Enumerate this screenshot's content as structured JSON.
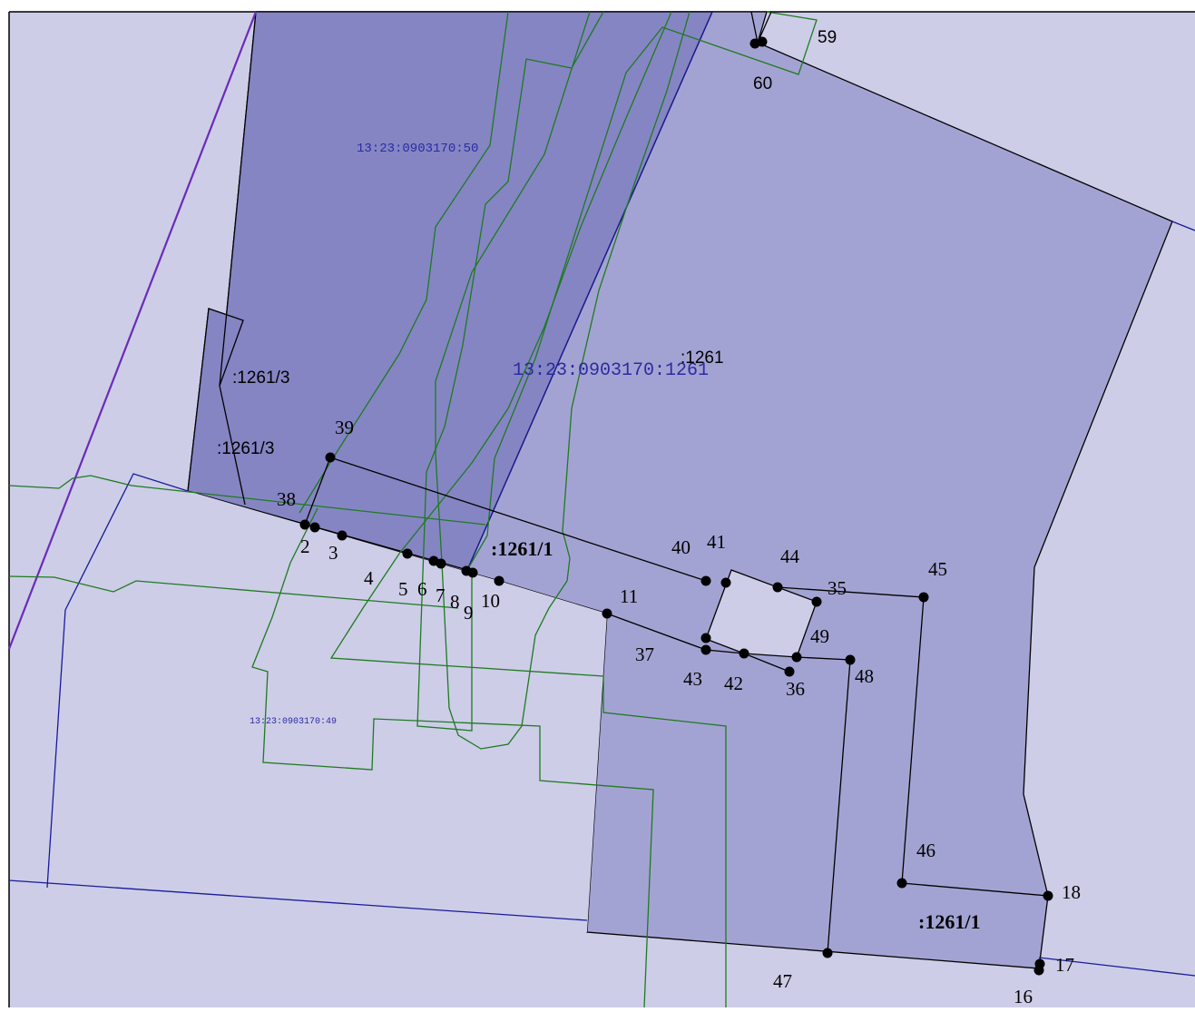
{
  "parcel_labels": {
    "main": "13:23:0903170:1261",
    "north_west": "13:23:0903170:50",
    "south_west": "13:23:0903170:49"
  },
  "subparcel_labels": {
    "part1_upper": ":1261/1",
    "part1_lower": ":1261/1",
    "part3_upper": ":1261/3",
    "part3_lower": ":1261/3",
    "short_main": ":1261"
  },
  "points": [
    {
      "id": "p2",
      "label": "2"
    },
    {
      "id": "p3",
      "label": "3"
    },
    {
      "id": "p4",
      "label": "4"
    },
    {
      "id": "p5",
      "label": "5"
    },
    {
      "id": "p6",
      "label": "6"
    },
    {
      "id": "p7",
      "label": "7"
    },
    {
      "id": "p8",
      "label": "8"
    },
    {
      "id": "p9",
      "label": "9"
    },
    {
      "id": "p10",
      "label": "10"
    },
    {
      "id": "p11",
      "label": "11"
    },
    {
      "id": "p16",
      "label": "16"
    },
    {
      "id": "p17",
      "label": "17"
    },
    {
      "id": "p18",
      "label": "18"
    },
    {
      "id": "p35",
      "label": "35"
    },
    {
      "id": "p36",
      "label": "36"
    },
    {
      "id": "p37",
      "label": "37"
    },
    {
      "id": "p38",
      "label": "38"
    },
    {
      "id": "p39",
      "label": "39"
    },
    {
      "id": "p40",
      "label": "40"
    },
    {
      "id": "p41",
      "label": "41"
    },
    {
      "id": "p42",
      "label": "42"
    },
    {
      "id": "p43",
      "label": "43"
    },
    {
      "id": "p44",
      "label": "44"
    },
    {
      "id": "p45",
      "label": "45"
    },
    {
      "id": "p46",
      "label": "46"
    },
    {
      "id": "p47",
      "label": "47"
    },
    {
      "id": "p48",
      "label": "48"
    },
    {
      "id": "p49",
      "label": "49"
    },
    {
      "id": "p59",
      "label": "59"
    },
    {
      "id": "p60",
      "label": "60"
    }
  ],
  "colors": {
    "background_parcel": "#cdcde8",
    "main_parcel": "#a3a3d3",
    "parcel_50": "#8585c4",
    "green_line": "#1f7a1f",
    "blue_line": "#1a1a9a",
    "boundary": "#000000"
  }
}
